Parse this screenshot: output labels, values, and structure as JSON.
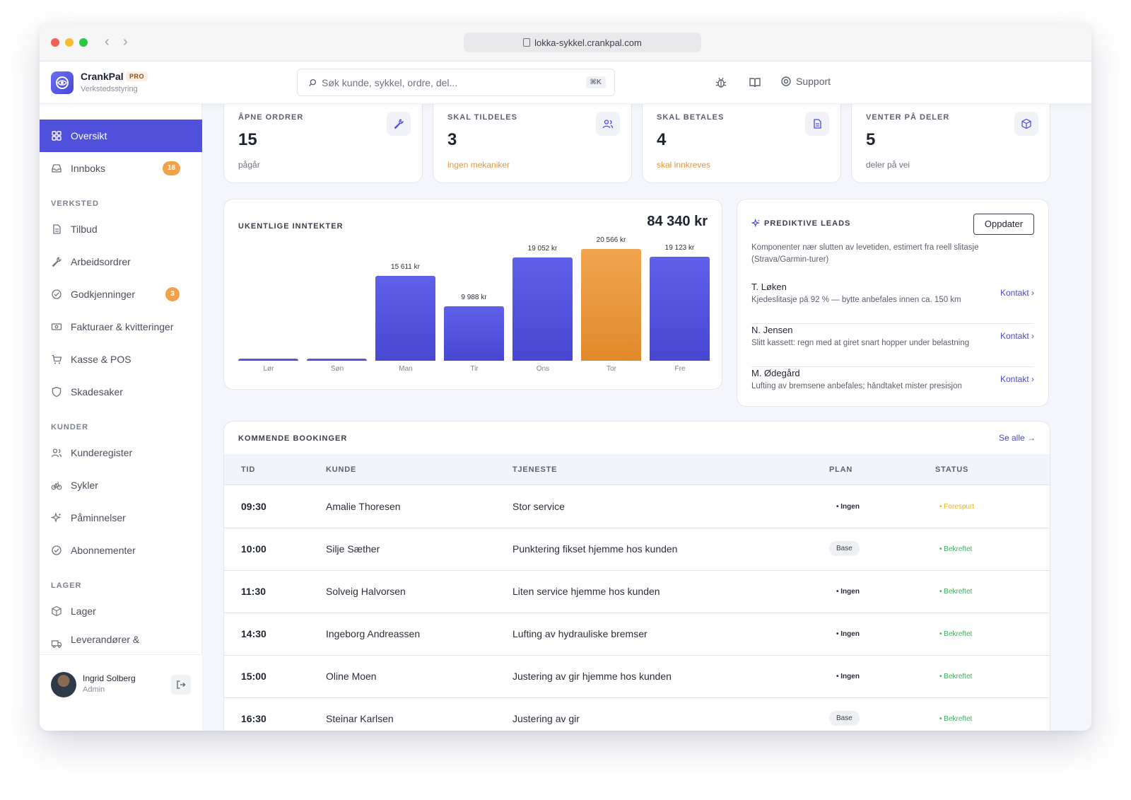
{
  "browser": {
    "url": "lokka-sykkel.crankpal.com"
  },
  "brand": {
    "name": "CrankPal",
    "tier": "PRO",
    "subtitle": "Verkstedsstyring"
  },
  "search": {
    "placeholder": "Søk kunde, sykkel, ordre, del...",
    "shortcut": "⌘K"
  },
  "header": {
    "support_label": "Support"
  },
  "sidebar": {
    "items": [
      {
        "label": "Oversikt",
        "icon": "grid-icon"
      },
      {
        "label": "Innboks",
        "icon": "inbox-icon",
        "badge": "18"
      }
    ],
    "sections": [
      {
        "label": "VERKSTED",
        "items": [
          {
            "label": "Tilbud",
            "icon": "document-icon"
          },
          {
            "label": "Arbeidsordrer",
            "icon": "wrench-icon"
          },
          {
            "label": "Godkjenninger",
            "icon": "check-circle-icon",
            "badge": "3"
          },
          {
            "label": "Fakturaer & kvitteringer",
            "icon": "banknote-icon"
          },
          {
            "label": "Kasse & POS",
            "icon": "cart-icon"
          },
          {
            "label": "Skadesaker",
            "icon": "shield-icon"
          }
        ]
      },
      {
        "label": "KUNDER",
        "items": [
          {
            "label": "Kunderegister",
            "icon": "users-icon"
          },
          {
            "label": "Sykler",
            "icon": "bike-icon"
          },
          {
            "label": "Påminnelser",
            "icon": "sparkle-icon"
          },
          {
            "label": "Abonnementer",
            "icon": "check-circle-icon"
          }
        ]
      },
      {
        "label": "LAGER",
        "items": [
          {
            "label": "Lager",
            "icon": "box-icon"
          },
          {
            "label": "Leverandører &",
            "icon": "truck-icon"
          }
        ]
      }
    ],
    "user": {
      "name": "Ingrid Solberg",
      "role": "Admin"
    }
  },
  "stats": [
    {
      "label": "ÅPNE ORDRER",
      "value": "15",
      "sub": "pågår",
      "warn": false,
      "icon": "wrench-icon"
    },
    {
      "label": "SKAL TILDELES",
      "value": "3",
      "sub": "ingen mekaniker",
      "warn": true,
      "icon": "users-icon"
    },
    {
      "label": "SKAL BETALES",
      "value": "4",
      "sub": "skal innkreves",
      "warn": true,
      "icon": "document-icon"
    },
    {
      "label": "VENTER PÅ DELER",
      "value": "5",
      "sub": "deler på vei",
      "warn": false,
      "icon": "box-icon"
    }
  ],
  "revenue": {
    "title": "UKENTLIGE INNTEKTER",
    "total": "84 340 kr"
  },
  "chart_data": {
    "type": "bar",
    "title": "UKENTLIGE INNTEKTER",
    "categories": [
      "Lør",
      "Søn",
      "Man",
      "Tir",
      "Ons",
      "Tor",
      "Fre"
    ],
    "values": [
      0,
      0,
      15611,
      9988,
      19052,
      20566,
      19123
    ],
    "value_labels": [
      "",
      "",
      "15 611 kr",
      "9 988 kr",
      "19 052 kr",
      "20 566 kr",
      "19 123 kr"
    ],
    "highlight_index": 5,
    "colors": {
      "default": "#4f50dc",
      "highlight": "#e8953a"
    },
    "grid": false,
    "legend": "none"
  },
  "leads": {
    "title": "PREDIKTIVE LEADS",
    "refresh_label": "Oppdater",
    "description": "Komponenter nær slutten av levetiden, estimert fra reell slitasje (Strava/Garmin-turer)",
    "items": [
      {
        "name": "T. Løken",
        "detail": "Kjedeslitasje på 92 % — bytte anbefales innen ca. 150 km",
        "action": "Kontakt ›"
      },
      {
        "name": "N. Jensen",
        "detail": "Slitt kassett: regn med at giret snart hopper under belastning",
        "action": "Kontakt ›"
      },
      {
        "name": "M. Ødegård",
        "detail": "Lufting av bremsene anbefales; håndtaket mister presisjon",
        "action": "Kontakt ›"
      }
    ]
  },
  "bookings": {
    "title": "KOMMENDE BOOKINGER",
    "see_all": "Se alle →",
    "columns": [
      "TID",
      "KUNDE",
      "TJENESTE",
      "PLAN",
      "STATUS"
    ],
    "rows": [
      {
        "time": "09:30",
        "customer": "Amalie Thoresen",
        "service": "Stor service",
        "plan": "Ingen",
        "plan_style": "dot",
        "status": "Forespurt",
        "status_style": "req"
      },
      {
        "time": "10:00",
        "customer": "Silje Sæther",
        "service": "Punktering fikset hjemme hos kunden",
        "plan": "Base",
        "plan_style": "pill",
        "status": "Bekreftet",
        "status_style": "ok"
      },
      {
        "time": "11:30",
        "customer": "Solveig Halvorsen",
        "service": "Liten service hjemme hos kunden",
        "plan": "Ingen",
        "plan_style": "dot",
        "status": "Bekreftet",
        "status_style": "ok"
      },
      {
        "time": "14:30",
        "customer": "Ingeborg Andreassen",
        "service": "Lufting av hydrauliske bremser",
        "plan": "Ingen",
        "plan_style": "dot",
        "status": "Bekreftet",
        "status_style": "ok"
      },
      {
        "time": "15:00",
        "customer": "Oline Moen",
        "service": "Justering av gir hjemme hos kunden",
        "plan": "Ingen",
        "plan_style": "dot",
        "status": "Bekreftet",
        "status_style": "ok"
      },
      {
        "time": "16:30",
        "customer": "Steinar Karlsen",
        "service": "Justering av gir",
        "plan": "Base",
        "plan_style": "pill",
        "status": "Bekreftet",
        "status_style": "ok"
      }
    ]
  }
}
